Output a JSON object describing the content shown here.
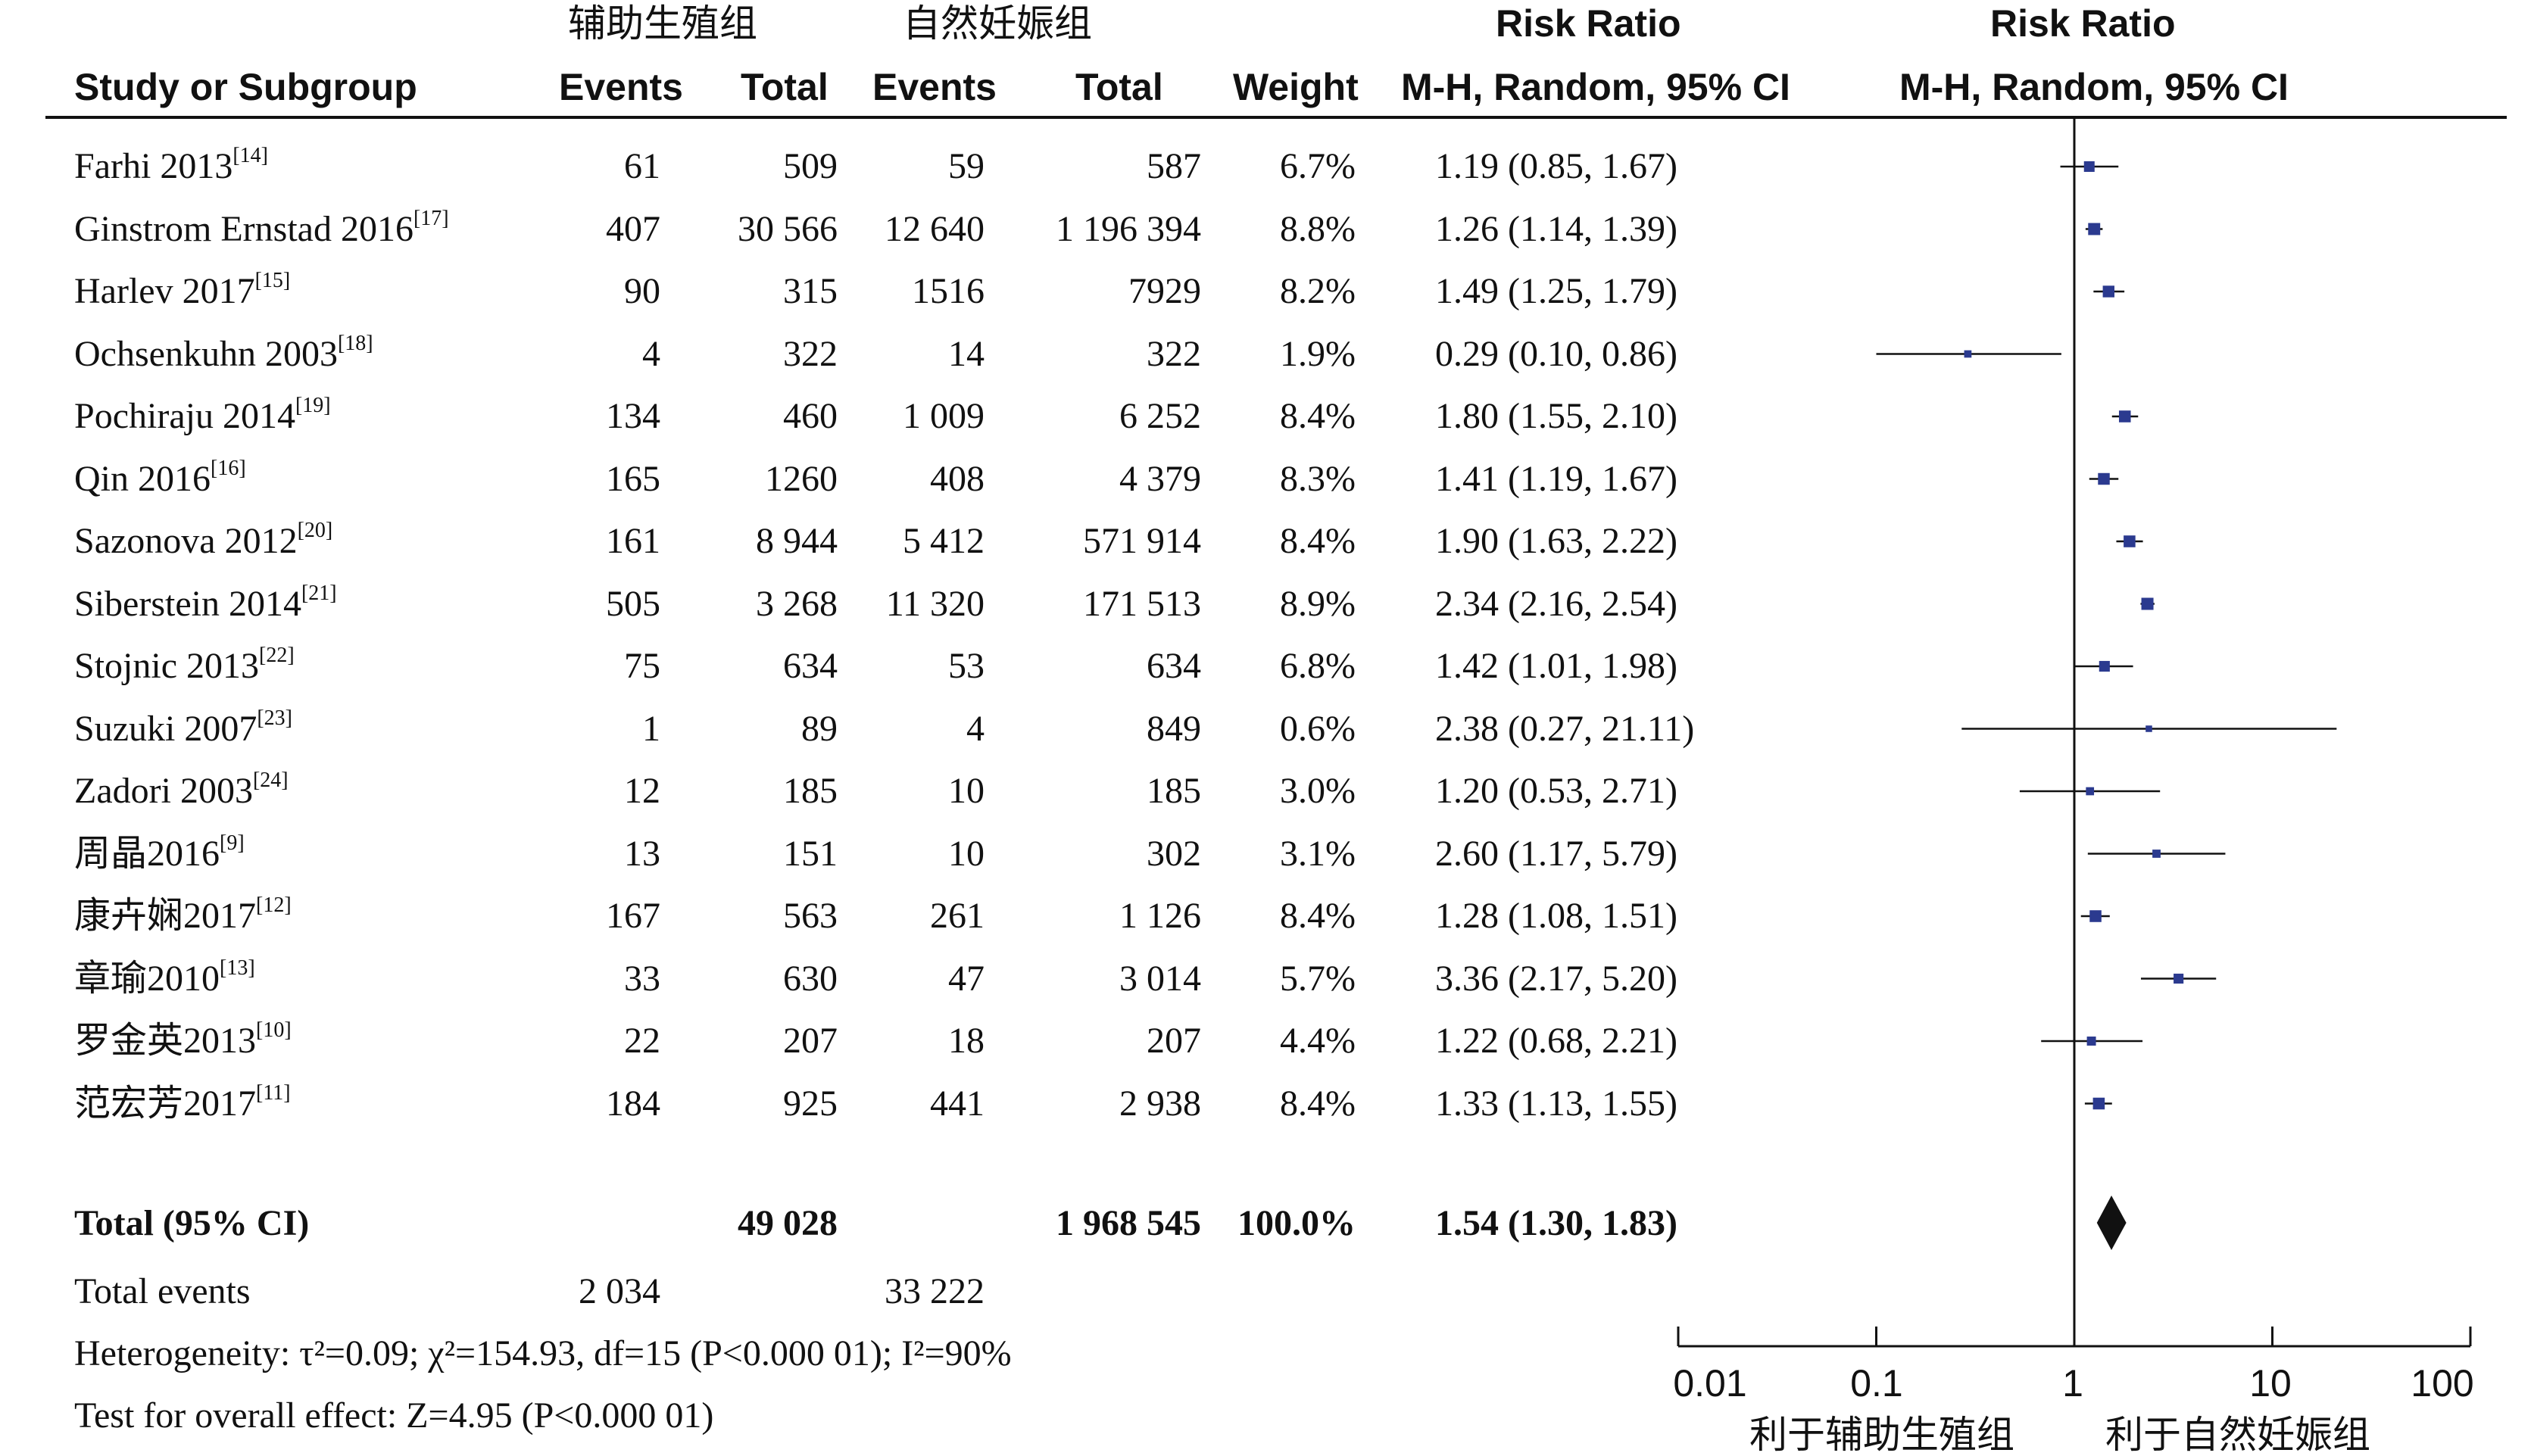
{
  "header": {
    "group1": "辅助生殖组",
    "group2": "自然妊娠组",
    "study_col": "Study or Subgroup",
    "events1": "Events",
    "total1": "Total",
    "events2": "Events",
    "total2": "Total",
    "weight": "Weight",
    "rr_title": "Risk Ratio",
    "rr_method": "M-H, Random, 95% CI",
    "plot_title": "Risk Ratio",
    "plot_method": "M-H, Random, 95% CI"
  },
  "studies": [
    {
      "name": "Farhi 2013",
      "ref": "[14]",
      "e1": "61",
      "t1": "509",
      "e2": "59",
      "t2": "587",
      "weight": "6.7%",
      "ci_text": "1.19 (0.85, 1.67)"
    },
    {
      "name": "Ginstrom Ernstad 2016",
      "ref": "[17]",
      "e1": "407",
      "t1": "30 566",
      "e2": "12 640",
      "t2": "1 196 394",
      "weight": "8.8%",
      "ci_text": "1.26 (1.14, 1.39)"
    },
    {
      "name": "Harlev 2017",
      "ref": "[15]",
      "e1": "90",
      "t1": "315",
      "e2": "1516",
      "t2": "7929",
      "weight": "8.2%",
      "ci_text": "1.49 (1.25, 1.79)"
    },
    {
      "name": "Ochsenkuhn 2003",
      "ref": "[18]",
      "e1": "4",
      "t1": "322",
      "e2": "14",
      "t2": "322",
      "weight": "1.9%",
      "ci_text": "0.29 (0.10, 0.86)"
    },
    {
      "name": "Pochiraju 2014",
      "ref": "[19]",
      "e1": "134",
      "t1": "460",
      "e2": "1 009",
      "t2": "6 252",
      "weight": "8.4%",
      "ci_text": "1.80 (1.55, 2.10)"
    },
    {
      "name": "Qin 2016",
      "ref": "[16]",
      "e1": "165",
      "t1": "1260",
      "e2": "408",
      "t2": "4 379",
      "weight": "8.3%",
      "ci_text": "1.41 (1.19, 1.67)"
    },
    {
      "name": "Sazonova 2012",
      "ref": "[20]",
      "e1": "161",
      "t1": "8 944",
      "e2": "5 412",
      "t2": "571 914",
      "weight": "8.4%",
      "ci_text": "1.90 (1.63, 2.22)"
    },
    {
      "name": "Siberstein 2014",
      "ref": "[21]",
      "e1": "505",
      "t1": "3 268",
      "e2": "11 320",
      "t2": "171 513",
      "weight": "8.9%",
      "ci_text": "2.34 (2.16, 2.54)"
    },
    {
      "name": "Stojnic 2013",
      "ref": "[22]",
      "e1": "75",
      "t1": "634",
      "e2": "53",
      "t2": "634",
      "weight": "6.8%",
      "ci_text": "1.42 (1.01, 1.98)"
    },
    {
      "name": "Suzuki 2007",
      "ref": "[23]",
      "e1": "1",
      "t1": "89",
      "e2": "4",
      "t2": "849",
      "weight": "0.6%",
      "ci_text": "2.38 (0.27, 21.11)"
    },
    {
      "name": "Zadori 2003",
      "ref": "[24]",
      "e1": "12",
      "t1": "185",
      "e2": "10",
      "t2": "185",
      "weight": "3.0%",
      "ci_text": "1.20 (0.53, 2.71)"
    },
    {
      "name": "周晶2016",
      "ref": "[9]",
      "e1": "13",
      "t1": "151",
      "e2": "10",
      "t2": "302",
      "weight": "3.1%",
      "ci_text": "2.60 (1.17, 5.79)"
    },
    {
      "name": "康卉娴2017",
      "ref": "[12]",
      "e1": "167",
      "t1": "563",
      "e2": "261",
      "t2": "1 126",
      "weight": "8.4%",
      "ci_text": "1.28 (1.08, 1.51)"
    },
    {
      "name": "章瑜2010",
      "ref": "[13]",
      "e1": "33",
      "t1": "630",
      "e2": "47",
      "t2": "3 014",
      "weight": "5.7%",
      "ci_text": "3.36 (2.17, 5.20)"
    },
    {
      "name": "罗金英2013",
      "ref": "[10]",
      "e1": "22",
      "t1": "207",
      "e2": "18",
      "t2": "207",
      "weight": "4.4%",
      "ci_text": "1.22 (0.68, 2.21)"
    },
    {
      "name": "范宏芳2017",
      "ref": "[11]",
      "e1": "184",
      "t1": "925",
      "e2": "441",
      "t2": "2 938",
      "weight": "8.4%",
      "ci_text": "1.33 (1.13, 1.55)"
    }
  ],
  "total": {
    "label": "Total (95% CI)",
    "t1": "49 028",
    "t2": "1 968 545",
    "weight": "100.0%",
    "ci_text": "1.54 (1.30, 1.83)"
  },
  "total_events": {
    "label": "Total events",
    "e1": "2 034",
    "e2": "33 222"
  },
  "heterogeneity": "Heterogeneity: τ²=0.09; χ²=154.93, df=15 (P<0.000 01); I²=90%",
  "overall": "Test for overall effect: Z=4.95 (P<0.000 01)",
  "axis": {
    "ticks": [
      "0.01",
      "0.1",
      "1",
      "10",
      "100"
    ],
    "favours_left": "利于辅助生殖组",
    "favours_right": "利于自然妊娠组"
  },
  "colors": {
    "marker": "#2b3a8f",
    "line": "#111111",
    "diamond": "#111111"
  },
  "chart_data": {
    "type": "forest",
    "title": "Risk Ratio",
    "subtitle": "M-H, Random, 95% CI",
    "x_scale": "log",
    "xlim": [
      0.01,
      100
    ],
    "reference": 1,
    "series": [
      {
        "label": "Farhi 2013",
        "rr": 1.19,
        "lo": 0.85,
        "hi": 1.67,
        "weight": 6.7
      },
      {
        "label": "Ginstrom Ernstad 2016",
        "rr": 1.26,
        "lo": 1.14,
        "hi": 1.39,
        "weight": 8.8
      },
      {
        "label": "Harlev 2017",
        "rr": 1.49,
        "lo": 1.25,
        "hi": 1.79,
        "weight": 8.2
      },
      {
        "label": "Ochsenkuhn 2003",
        "rr": 0.29,
        "lo": 0.1,
        "hi": 0.86,
        "weight": 1.9
      },
      {
        "label": "Pochiraju 2014",
        "rr": 1.8,
        "lo": 1.55,
        "hi": 2.1,
        "weight": 8.4
      },
      {
        "label": "Qin 2016",
        "rr": 1.41,
        "lo": 1.19,
        "hi": 1.67,
        "weight": 8.3
      },
      {
        "label": "Sazonova 2012",
        "rr": 1.9,
        "lo": 1.63,
        "hi": 2.22,
        "weight": 8.4
      },
      {
        "label": "Siberstein 2014",
        "rr": 2.34,
        "lo": 2.16,
        "hi": 2.54,
        "weight": 8.9
      },
      {
        "label": "Stojnic 2013",
        "rr": 1.42,
        "lo": 1.01,
        "hi": 1.98,
        "weight": 6.8
      },
      {
        "label": "Suzuki 2007",
        "rr": 2.38,
        "lo": 0.27,
        "hi": 21.11,
        "weight": 0.6
      },
      {
        "label": "Zadori 2003",
        "rr": 1.2,
        "lo": 0.53,
        "hi": 2.71,
        "weight": 3.0
      },
      {
        "label": "周晶2016",
        "rr": 2.6,
        "lo": 1.17,
        "hi": 5.79,
        "weight": 3.1
      },
      {
        "label": "康卉娴2017",
        "rr": 1.28,
        "lo": 1.08,
        "hi": 1.51,
        "weight": 8.4
      },
      {
        "label": "章瑜2010",
        "rr": 3.36,
        "lo": 2.17,
        "hi": 5.2,
        "weight": 5.7
      },
      {
        "label": "罗金英2013",
        "rr": 1.22,
        "lo": 0.68,
        "hi": 2.21,
        "weight": 4.4
      },
      {
        "label": "范宏芳2017",
        "rr": 1.33,
        "lo": 1.13,
        "hi": 1.55,
        "weight": 8.4
      }
    ],
    "pooled": {
      "label": "Total (95% CI)",
      "rr": 1.54,
      "lo": 1.3,
      "hi": 1.83,
      "weight": 100.0
    }
  }
}
